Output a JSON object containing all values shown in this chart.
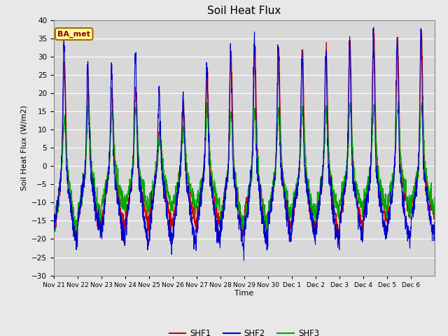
{
  "title": "Soil Heat Flux",
  "ylabel": "Soil Heat Flux (W/m2)",
  "xlabel": "Time",
  "ylim": [
    -30,
    40
  ],
  "background_color": "#e8e8e8",
  "plot_bg_color": "#d8d8d8",
  "grid_color": "#ffffff",
  "label_box_text": "BA_met",
  "label_box_facecolor": "#ffff99",
  "label_box_edgecolor": "#aa6600",
  "line_colors": {
    "SHF1": "#cc0000",
    "SHF2": "#0000cc",
    "SHF3": "#00aa00"
  },
  "line_width": 0.8,
  "x_tick_labels": [
    "Nov 21",
    "Nov 22",
    "Nov 23",
    "Nov 24",
    "Nov 25",
    "Nov 26",
    "Nov 27",
    "Nov 28",
    "Nov 29",
    "Nov 30",
    "Dec 1",
    "Dec 2",
    "Dec 3",
    "Dec 4",
    "Dec 5",
    "Dec 6"
  ],
  "n_days": 16,
  "points_per_day": 144,
  "seed": 42
}
